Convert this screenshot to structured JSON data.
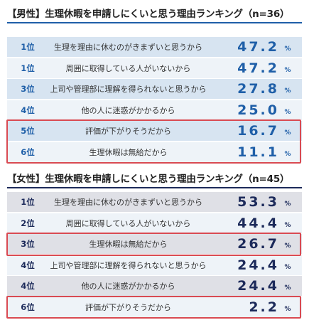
{
  "colors": {
    "male_accent": "#1f5fa8",
    "female_accent": "#1c2a5a",
    "male_band": "#d7e4f1",
    "female_band": "#dfe0e6",
    "row_light": "#eef3f8",
    "highlight": "#d94a52"
  },
  "chart_data": [
    {
      "type": "table",
      "title": "【男性】生理休暇を申請しにくいと思う理由ランキング（n=36）",
      "unit": "%",
      "rows": [
        {
          "rank": "1位",
          "reason": "生理を理由に休むのがきまずいと思うから",
          "value": "47.2",
          "highlight": false
        },
        {
          "rank": "1位",
          "reason": "周囲に取得している人がいないから",
          "value": "47.2",
          "highlight": false
        },
        {
          "rank": "3位",
          "reason": "上司や管理部に理解を得られないと思うから",
          "value": "27.8",
          "highlight": false
        },
        {
          "rank": "4位",
          "reason": "他の人に迷惑がかかるから",
          "value": "25.0",
          "highlight": false
        },
        {
          "rank": "5位",
          "reason": "評価が下がりそうだから",
          "value": "16.7",
          "highlight": true
        },
        {
          "rank": "6位",
          "reason": "生理休暇は無給だから",
          "value": "11.1",
          "highlight": true
        }
      ]
    },
    {
      "type": "table",
      "title": "【女性】生理休暇を申請しにくいと思う理由ランキング（n=45）",
      "unit": "%",
      "rows": [
        {
          "rank": "1位",
          "reason": "生理を理由に休むのがきまずいと思うから",
          "value": "53.3",
          "highlight": false
        },
        {
          "rank": "2位",
          "reason": "周囲に取得している人がいないから",
          "value": "44.4",
          "highlight": false
        },
        {
          "rank": "3位",
          "reason": "生理休暇は無給だから",
          "value": "26.7",
          "highlight": true
        },
        {
          "rank": "4位",
          "reason": "上司や管理部に理解を得られないと思うから",
          "value": "24.4",
          "highlight": false
        },
        {
          "rank": "4位",
          "reason": "他の人に迷惑がかかるから",
          "value": "24.4",
          "highlight": false
        },
        {
          "rank": "6位",
          "reason": "評価が下がりそうだから",
          "value": "2.2",
          "highlight": true
        }
      ]
    }
  ]
}
